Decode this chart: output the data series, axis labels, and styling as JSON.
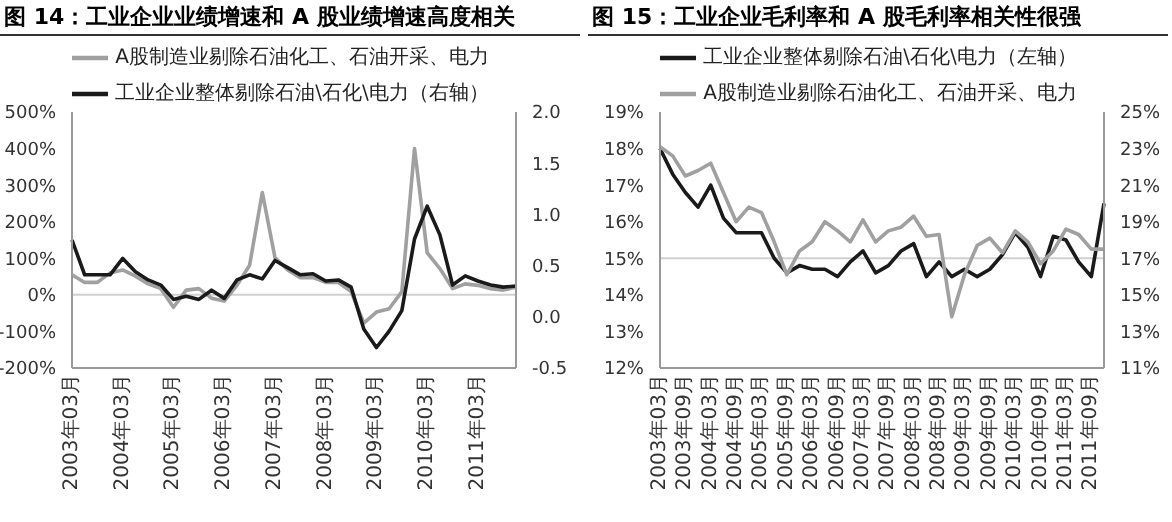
{
  "chart_data": [
    {
      "type": "line",
      "title": "图 14：工业企业业绩增速和 A 股业绩增速高度相关",
      "categories": [
        "2003年03月",
        null,
        null,
        null,
        "2004年03月",
        null,
        null,
        null,
        "2005年03月",
        null,
        null,
        null,
        "2006年03月",
        null,
        null,
        null,
        "2007年03月",
        null,
        null,
        null,
        "2008年03月",
        null,
        null,
        null,
        "2009年03月",
        null,
        null,
        null,
        "2010年03月",
        null,
        null,
        null,
        "2011年03月",
        null,
        null,
        null
      ],
      "series": [
        {
          "name": "A股制造业剔除石油化工、石油开采、电力",
          "color": "#a0a0a0",
          "values": [
            55,
            34,
            34,
            60,
            68,
            51,
            30,
            17,
            -34,
            13,
            17,
            -9,
            -17,
            26,
            81,
            280,
            102,
            68,
            47,
            47,
            34,
            34,
            9,
            -77,
            -47,
            -38,
            9,
            400,
            115,
            72,
            17,
            30,
            26,
            17,
            13,
            21
          ]
        },
        {
          "name": "工业企业整体剔除石油\\石化\\电力（右轴）",
          "color": "#1a1a1a",
          "axis": "y2",
          "values": [
            0.75,
            0.41,
            0.41,
            0.41,
            0.57,
            0.44,
            0.36,
            0.31,
            0.17,
            0.2,
            0.17,
            0.26,
            0.18,
            0.36,
            0.41,
            0.37,
            0.55,
            0.48,
            0.41,
            0.42,
            0.35,
            0.36,
            0.29,
            -0.12,
            -0.3,
            -0.14,
            0.06,
            0.76,
            1.08,
            0.8,
            0.31,
            0.4,
            0.35,
            0.31,
            0.29,
            0.3
          ]
        }
      ],
      "ylim": [
        -200,
        500
      ],
      "yticks": [
        {
          "value": -200,
          "label": "-200%"
        },
        {
          "value": -100,
          "label": "-100%"
        },
        {
          "value": 0,
          "label": "0%"
        },
        {
          "value": 100,
          "label": "100%"
        },
        {
          "value": 200,
          "label": "200%"
        },
        {
          "value": 300,
          "label": "300%"
        },
        {
          "value": 400,
          "label": "400%"
        },
        {
          "value": 500,
          "label": "500%"
        }
      ],
      "y2lim": [
        -0.5,
        2
      ],
      "y2ticks": [
        -0.5,
        {
          "value": 0,
          "label": "0.0"
        },
        0.5,
        {
          "value": 1,
          "label": "1.0"
        },
        1.5,
        {
          "value": 2,
          "label": "2.0"
        }
      ],
      "ref_lines": [
        {
          "axis": "y",
          "value": 0,
          "color": "#d0d0d0"
        }
      ],
      "legend": "top",
      "marker": "none"
    },
    {
      "type": "line",
      "title": "图 15：工业企业毛利率和 A 股毛利率相关性很强",
      "categories": [
        "2003年03月",
        null,
        "2003年09月",
        null,
        "2004年03月",
        null,
        "2004年09月",
        null,
        "2005年03月",
        null,
        "2005年09月",
        null,
        "2006年03月",
        null,
        "2006年09月",
        null,
        "2007年03月",
        null,
        "2007年09月",
        null,
        "2008年03月",
        null,
        "2008年09月",
        null,
        "2009年03月",
        null,
        "2009年09月",
        null,
        "2010年03月",
        null,
        "2010年09月",
        null,
        "2011年03月",
        null,
        "2011年09月",
        null
      ],
      "series": [
        {
          "name": "工业企业整体剔除石油\\石化\\电力（左轴）",
          "color": "#1a1a1a",
          "values": [
            18.0,
            17.3,
            16.8,
            16.4,
            17.0,
            16.1,
            15.7,
            15.7,
            15.7,
            15.0,
            14.6,
            14.8,
            14.7,
            14.7,
            14.5,
            14.9,
            15.2,
            14.6,
            14.8,
            15.2,
            15.4,
            14.5,
            14.9,
            14.5,
            14.7,
            14.5,
            14.7,
            15.1,
            15.7,
            15.3,
            14.5,
            15.6,
            15.5,
            14.9,
            14.5,
            16.5
          ]
        },
        {
          "name": "A股制造业剔除石油化工、石油开采、电力",
          "color": "#a0a0a0",
          "axis": "y2",
          "values": [
            23.1,
            22.6,
            21.5,
            21.8,
            22.2,
            20.6,
            19.0,
            19.8,
            19.5,
            17.9,
            16.1,
            17.4,
            17.9,
            19.0,
            18.5,
            17.9,
            19.1,
            17.9,
            18.5,
            18.7,
            19.3,
            18.2,
            18.3,
            13.8,
            16.1,
            17.7,
            18.1,
            17.3,
            18.5,
            17.9,
            16.7,
            17.4,
            18.6,
            18.3,
            17.5,
            17.5
          ]
        }
      ],
      "ylim": [
        12,
        19
      ],
      "yticks": [
        {
          "value": 12,
          "label": "12%"
        },
        {
          "value": 13,
          "label": "13%"
        },
        {
          "value": 14,
          "label": "14%"
        },
        {
          "value": 15,
          "label": "15%"
        },
        {
          "value": 16,
          "label": "16%"
        },
        {
          "value": 17,
          "label": "17%"
        },
        {
          "value": 18,
          "label": "18%"
        },
        {
          "value": 19,
          "label": "19%"
        }
      ],
      "y2lim": [
        11,
        25
      ],
      "y2ticks": [
        {
          "value": 11,
          "label": "11%"
        },
        {
          "value": 13,
          "label": "13%"
        },
        {
          "value": 15,
          "label": "15%"
        },
        {
          "value": 17,
          "label": "17%"
        },
        {
          "value": 19,
          "label": "19%"
        },
        {
          "value": 21,
          "label": "21%"
        },
        {
          "value": 23,
          "label": "23%"
        },
        {
          "value": 25,
          "label": "25%"
        }
      ],
      "ref_lines": [
        {
          "axis": "y",
          "value": 15,
          "color": "#d0d0d0"
        }
      ],
      "legend": "top",
      "marker": "none"
    }
  ]
}
